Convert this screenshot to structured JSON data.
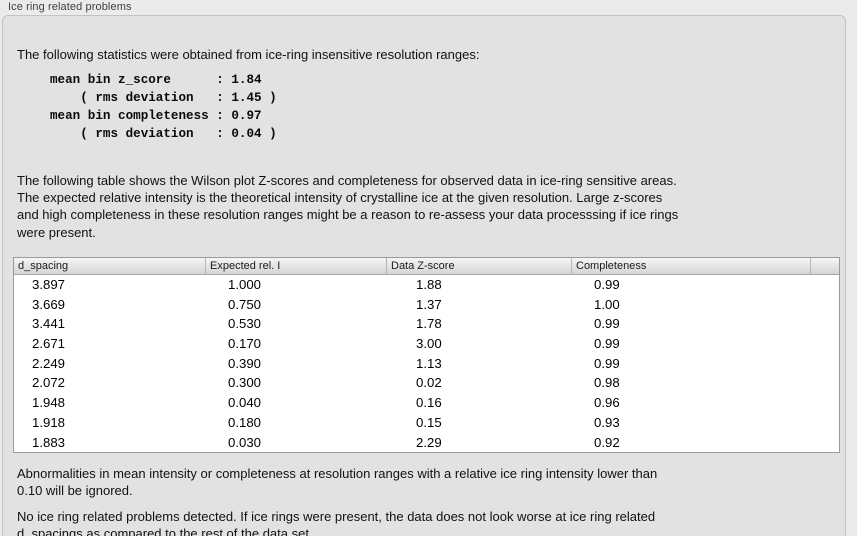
{
  "panel": {
    "title": "Ice ring related problems"
  },
  "intro_text": "The following statistics were obtained from ice-ring insensitive resolution ranges:",
  "stats_block": "mean bin z_score      : 1.84\n    ( rms deviation   : 1.45 )\nmean bin completeness : 0.97\n    ( rms deviation   : 0.04 )",
  "stats": {
    "mean_bin_z_score": "1.84",
    "z_score_rms_deviation": "1.45",
    "mean_bin_completeness": "0.97",
    "completeness_rms_deviation": "0.04"
  },
  "description_text": "The following table shows the Wilson plot Z-scores and completeness for observed data in ice-ring sensitive areas.\nThe expected relative intensity is the theoretical intensity of crystalline ice at the given resolution. Large z-scores\nand high completeness in these resolution ranges might be a reason to re-assess your data processsing if ice rings\nwere present.",
  "table": {
    "columns": [
      "d_spacing",
      "Expected rel. I",
      "Data Z-score",
      "Completeness"
    ],
    "rows": [
      [
        "3.897",
        "1.000",
        "1.88",
        "0.99"
      ],
      [
        "3.669",
        "0.750",
        "1.37",
        "1.00"
      ],
      [
        "3.441",
        "0.530",
        "1.78",
        "0.99"
      ],
      [
        "2.671",
        "0.170",
        "3.00",
        "0.99"
      ],
      [
        "2.249",
        "0.390",
        "1.13",
        "0.99"
      ],
      [
        "2.072",
        "0.300",
        "0.02",
        "0.98"
      ],
      [
        "1.948",
        "0.040",
        "0.16",
        "0.96"
      ],
      [
        "1.918",
        "0.180",
        "0.15",
        "0.93"
      ],
      [
        "1.883",
        "0.030",
        "2.29",
        "0.92"
      ]
    ]
  },
  "note_text": "Abnormalities in mean intensity or completeness at resolution ranges with a relative ice ring intensity lower than\n0.10 will be ignored.",
  "conclusion_text": "No ice ring related problems detected. If ice rings were present, the data does not look worse at ice ring related\nd_spacings as compared to the rest of the data set.",
  "colors": {
    "page_background": "#ebebeb",
    "groupbox_background": "#e2e2e2",
    "groupbox_border": "#c3c3c3",
    "table_border": "#9a9a9a",
    "table_header_background": "#e0e0e0",
    "text": "#111111"
  }
}
